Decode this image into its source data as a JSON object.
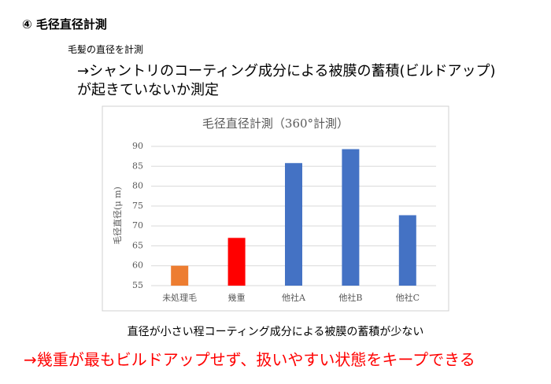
{
  "header": {
    "title": "④ 毛径直径計測",
    "subtitle": "毛髪の直径を計測",
    "lines": [
      "→シャントリのコーティング成分による被膜の蓄積(ビルドアップ)",
      "が起きていないか測定"
    ]
  },
  "chart_data": {
    "type": "bar",
    "title": "毛径直径計測（360°計測）",
    "y_label": "毛径直径(μ m)",
    "categories": [
      "未処理毛",
      "幾重",
      "他社A",
      "他社B",
      "他社C"
    ],
    "values": [
      60,
      67,
      85.8,
      89.3,
      72.7
    ],
    "colors": [
      "#ed7d31",
      "#ff0000",
      "#4472c4",
      "#4472c4",
      "#4472c4"
    ],
    "ylim": [
      55,
      90
    ],
    "yticks": [
      55,
      60,
      65,
      70,
      75,
      80,
      85,
      90
    ],
    "grid": true
  },
  "footer": {
    "note": "直径が小さい程コーティング成分による被膜の蓄積が少ない",
    "conclusion": "→幾重が最もビルドアップせず、扱いやすい状態をキープできる"
  }
}
